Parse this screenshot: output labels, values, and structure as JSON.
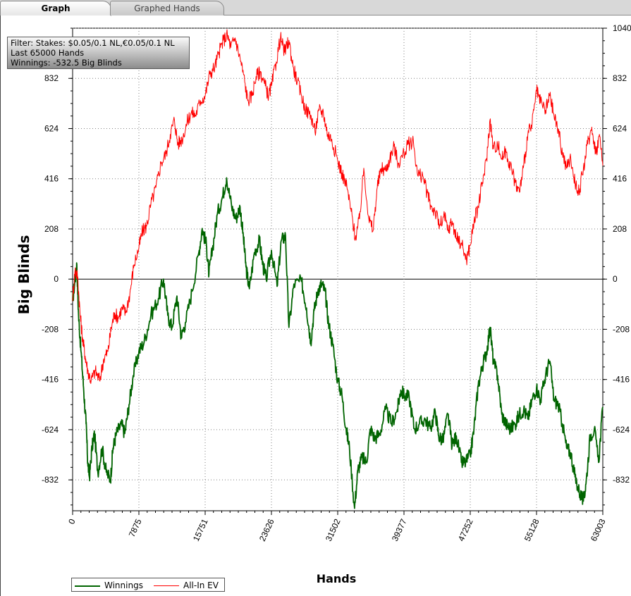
{
  "tabs": [
    {
      "label": "Graph",
      "active": true
    },
    {
      "label": "Graphed Hands",
      "active": false
    }
  ],
  "filter": {
    "line1": "Filter: Stakes: $0.05/0.1 NL,€0.05/0.1 NL",
    "line2": "Last  65000 Hands",
    "line3": "Winnings: -532.5 Big Blinds"
  },
  "colors": {
    "winnings": "#006400",
    "allin_ev": "#ff0000",
    "grid": "#808080",
    "zero_line": "#000000"
  },
  "chart_data": {
    "type": "line",
    "title": "",
    "xlabel": "Hands",
    "ylabel": "Big Blinds",
    "xlim": [
      0,
      63003
    ],
    "ylim": [
      -960,
      1040
    ],
    "x_ticks": [
      "0",
      "7875",
      "15751",
      "23626",
      "31502",
      "39377",
      "47252",
      "55128",
      "63003"
    ],
    "y_ticks_left": [
      "832",
      "624",
      "416",
      "208",
      "0",
      "-208",
      "-416",
      "-624",
      "-832"
    ],
    "y_ticks_right": [
      "1040",
      "832",
      "624",
      "416",
      "208",
      "0",
      "-208",
      "-416",
      "-624",
      "-832"
    ],
    "grid": true,
    "legend_position": "bottom-left",
    "series": [
      {
        "name": "Winnings",
        "color": "#006400",
        "points": [
          [
            0,
            -90
          ],
          [
            300,
            0
          ],
          [
            500,
            60
          ],
          [
            700,
            -150
          ],
          [
            1000,
            -300
          ],
          [
            1300,
            -450
          ],
          [
            1600,
            -600
          ],
          [
            1800,
            -760
          ],
          [
            2000,
            -820
          ],
          [
            2300,
            -700
          ],
          [
            2600,
            -640
          ],
          [
            3000,
            -800
          ],
          [
            3500,
            -700
          ],
          [
            4000,
            -800
          ],
          [
            4500,
            -830
          ],
          [
            4800,
            -700
          ],
          [
            5200,
            -640
          ],
          [
            5800,
            -600
          ],
          [
            6200,
            -640
          ],
          [
            6700,
            -520
          ],
          [
            7200,
            -400
          ],
          [
            7875,
            -300
          ],
          [
            8500,
            -260
          ],
          [
            9300,
            -150
          ],
          [
            10200,
            -80
          ],
          [
            10800,
            0
          ],
          [
            11300,
            -150
          ],
          [
            11800,
            -200
          ],
          [
            12400,
            -70
          ],
          [
            12900,
            -240
          ],
          [
            13400,
            -180
          ],
          [
            14200,
            -50
          ],
          [
            15000,
            110
          ],
          [
            15400,
            210
          ],
          [
            15900,
            140
          ],
          [
            16200,
            20
          ],
          [
            16600,
            120
          ],
          [
            17200,
            270
          ],
          [
            17800,
            340
          ],
          [
            18300,
            420
          ],
          [
            18900,
            300
          ],
          [
            19400,
            250
          ],
          [
            19900,
            300
          ],
          [
            20300,
            170
          ],
          [
            20600,
            50
          ],
          [
            21000,
            -40
          ],
          [
            21600,
            110
          ],
          [
            22200,
            160
          ],
          [
            22600,
            60
          ],
          [
            23000,
            0
          ],
          [
            23626,
            120
          ],
          [
            24300,
            -30
          ],
          [
            24800,
            160
          ],
          [
            25300,
            180
          ],
          [
            25700,
            -200
          ],
          [
            26300,
            -20
          ],
          [
            27200,
            -10
          ],
          [
            27800,
            -120
          ],
          [
            28300,
            -260
          ],
          [
            28700,
            -130
          ],
          [
            29200,
            -40
          ],
          [
            29600,
            -20
          ],
          [
            30000,
            -50
          ],
          [
            30400,
            -180
          ],
          [
            30900,
            -270
          ],
          [
            31502,
            -420
          ],
          [
            32000,
            -480
          ],
          [
            32500,
            -620
          ],
          [
            32900,
            -700
          ],
          [
            33500,
            -950
          ],
          [
            33900,
            -790
          ],
          [
            34400,
            -740
          ],
          [
            34900,
            -760
          ],
          [
            35400,
            -620
          ],
          [
            35900,
            -660
          ],
          [
            36500,
            -640
          ],
          [
            37200,
            -540
          ],
          [
            37900,
            -600
          ],
          [
            38600,
            -540
          ],
          [
            39000,
            -460
          ],
          [
            39377,
            -480
          ],
          [
            40000,
            -490
          ],
          [
            40600,
            -620
          ],
          [
            41200,
            -600
          ],
          [
            41900,
            -580
          ],
          [
            42500,
            -620
          ],
          [
            43100,
            -550
          ],
          [
            43500,
            -650
          ],
          [
            44000,
            -670
          ],
          [
            44600,
            -560
          ],
          [
            45100,
            -690
          ],
          [
            45600,
            -650
          ],
          [
            46200,
            -760
          ],
          [
            46700,
            -760
          ],
          [
            47252,
            -730
          ],
          [
            47700,
            -620
          ],
          [
            48200,
            -440
          ],
          [
            48700,
            -360
          ],
          [
            49200,
            -300
          ],
          [
            49600,
            -200
          ],
          [
            50000,
            -340
          ],
          [
            50500,
            -400
          ],
          [
            51000,
            -560
          ],
          [
            51500,
            -600
          ],
          [
            52000,
            -620
          ],
          [
            52600,
            -600
          ],
          [
            53100,
            -560
          ],
          [
            53600,
            -540
          ],
          [
            54100,
            -580
          ],
          [
            54600,
            -500
          ],
          [
            55128,
            -450
          ],
          [
            55600,
            -500
          ],
          [
            56200,
            -400
          ],
          [
            56700,
            -340
          ],
          [
            57200,
            -500
          ],
          [
            57700,
            -520
          ],
          [
            58200,
            -600
          ],
          [
            58700,
            -700
          ],
          [
            59200,
            -720
          ],
          [
            59700,
            -820
          ],
          [
            60200,
            -880
          ],
          [
            60700,
            -920
          ],
          [
            61000,
            -850
          ],
          [
            61500,
            -650
          ],
          [
            62000,
            -620
          ],
          [
            62500,
            -760
          ],
          [
            63003,
            -530
          ]
        ]
      },
      {
        "name": "All-In EV",
        "color": "#ff0000",
        "points": [
          [
            0,
            -80
          ],
          [
            300,
            40
          ],
          [
            600,
            10
          ],
          [
            900,
            -150
          ],
          [
            1200,
            -250
          ],
          [
            1500,
            -320
          ],
          [
            1800,
            -380
          ],
          [
            2200,
            -420
          ],
          [
            2700,
            -380
          ],
          [
            3200,
            -420
          ],
          [
            3700,
            -330
          ],
          [
            4200,
            -300
          ],
          [
            4600,
            -200
          ],
          [
            5000,
            -140
          ],
          [
            5400,
            -160
          ],
          [
            5900,
            -120
          ],
          [
            6300,
            -140
          ],
          [
            6800,
            -60
          ],
          [
            7300,
            60
          ],
          [
            7875,
            130
          ],
          [
            8300,
            200
          ],
          [
            8800,
            220
          ],
          [
            9300,
            310
          ],
          [
            9900,
            380
          ],
          [
            10500,
            480
          ],
          [
            11100,
            520
          ],
          [
            11600,
            600
          ],
          [
            12100,
            660
          ],
          [
            12500,
            560
          ],
          [
            13000,
            580
          ],
          [
            13600,
            650
          ],
          [
            14100,
            690
          ],
          [
            14600,
            680
          ],
          [
            15200,
            740
          ],
          [
            15751,
            760
          ],
          [
            16300,
            850
          ],
          [
            16900,
            880
          ],
          [
            17400,
            940
          ],
          [
            17900,
            990
          ],
          [
            18400,
            1010
          ],
          [
            18800,
            960
          ],
          [
            19300,
            1000
          ],
          [
            19800,
            930
          ],
          [
            20300,
            850
          ],
          [
            20800,
            740
          ],
          [
            21300,
            760
          ],
          [
            21800,
            840
          ],
          [
            22300,
            860
          ],
          [
            22800,
            810
          ],
          [
            23300,
            760
          ],
          [
            23626,
            800
          ],
          [
            24200,
            900
          ],
          [
            24700,
            1000
          ],
          [
            25200,
            940
          ],
          [
            25700,
            990
          ],
          [
            26200,
            880
          ],
          [
            26700,
            820
          ],
          [
            27200,
            760
          ],
          [
            27700,
            700
          ],
          [
            28300,
            680
          ],
          [
            28800,
            610
          ],
          [
            29300,
            700
          ],
          [
            29800,
            690
          ],
          [
            30300,
            600
          ],
          [
            30800,
            580
          ],
          [
            31502,
            490
          ],
          [
            32000,
            440
          ],
          [
            32600,
            380
          ],
          [
            33100,
            280
          ],
          [
            33600,
            170
          ],
          [
            34100,
            250
          ],
          [
            34600,
            460
          ],
          [
            35200,
            250
          ],
          [
            35700,
            200
          ],
          [
            36200,
            380
          ],
          [
            36700,
            460
          ],
          [
            37200,
            450
          ],
          [
            37700,
            500
          ],
          [
            38200,
            550
          ],
          [
            38700,
            480
          ],
          [
            39377,
            520
          ],
          [
            39900,
            560
          ],
          [
            40500,
            570
          ],
          [
            41000,
            430
          ],
          [
            41600,
            430
          ],
          [
            42100,
            360
          ],
          [
            42600,
            300
          ],
          [
            43100,
            280
          ],
          [
            43600,
            220
          ],
          [
            44200,
            260
          ],
          [
            44600,
            200
          ],
          [
            45100,
            240
          ],
          [
            45600,
            170
          ],
          [
            46200,
            150
          ],
          [
            46800,
            80
          ],
          [
            47252,
            140
          ],
          [
            47700,
            240
          ],
          [
            48200,
            300
          ],
          [
            48700,
            400
          ],
          [
            49200,
            500
          ],
          [
            49600,
            660
          ],
          [
            50000,
            540
          ],
          [
            50500,
            560
          ],
          [
            51000,
            500
          ],
          [
            51500,
            530
          ],
          [
            52000,
            470
          ],
          [
            52600,
            400
          ],
          [
            53100,
            360
          ],
          [
            53600,
            470
          ],
          [
            54100,
            600
          ],
          [
            54600,
            640
          ],
          [
            55128,
            780
          ],
          [
            55600,
            730
          ],
          [
            56200,
            700
          ],
          [
            56700,
            760
          ],
          [
            57200,
            680
          ],
          [
            57700,
            620
          ],
          [
            58200,
            520
          ],
          [
            58700,
            460
          ],
          [
            59200,
            500
          ],
          [
            59700,
            400
          ],
          [
            60200,
            360
          ],
          [
            60700,
            460
          ],
          [
            61200,
            560
          ],
          [
            61700,
            630
          ],
          [
            62200,
            520
          ],
          [
            62600,
            600
          ],
          [
            63003,
            470
          ]
        ]
      }
    ]
  }
}
